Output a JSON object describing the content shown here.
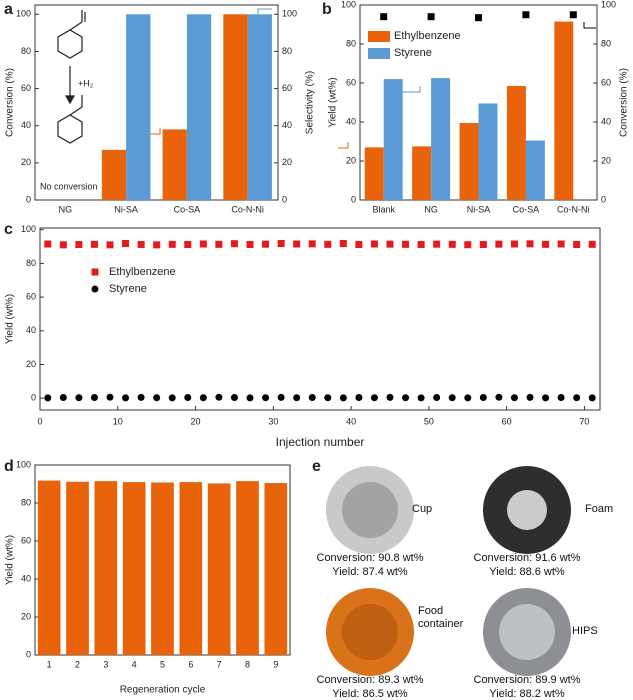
{
  "chart_data": [
    {
      "type": "bar",
      "panel_label": "a",
      "ylabel": "Conversion (%)",
      "ylabel_color": "#e8630a",
      "y2label": "Selectivity (%)",
      "y2label_color": "#5b9bd5",
      "categories": [
        "NG",
        "Ni-SA",
        "Co-SA",
        "Co-N-Ni"
      ],
      "series": [
        {
          "color": "#e8630a",
          "values": [
            0,
            27,
            38,
            100
          ]
        },
        {
          "color": "#5b9bd5",
          "axis": "y2",
          "values": [
            null,
            100,
            100,
            100
          ]
        }
      ],
      "ylim": [
        0,
        105
      ],
      "yticks": [
        0,
        20,
        40,
        60,
        80,
        100
      ],
      "y2lim": [
        0,
        105
      ],
      "y2ticks": [
        0,
        20,
        40,
        60,
        80,
        100
      ],
      "annotations": [
        "No conversion",
        "+H₂"
      ]
    },
    {
      "type": "bar",
      "panel_label": "b",
      "ylabel": "Yield (wt%)",
      "ylabel_color": "#e8630a",
      "y2label": "Conversion (%)",
      "y2label_color": "#000000",
      "categories": [
        "Blank",
        "NG",
        "Ni-SA",
        "Co-SA",
        "Co-N-Ni"
      ],
      "series": [
        {
          "name": "Ethylbenzene",
          "color": "#e8630a",
          "values": [
            27,
            27.5,
            39.5,
            58.5,
            91.5
          ]
        },
        {
          "name": "Styrene",
          "color": "#5b9bd5",
          "values": [
            62,
            62.5,
            49.5,
            30.5,
            null
          ]
        },
        {
          "type": "scatter",
          "marker": "square",
          "color": "#000000",
          "axis": "y2",
          "values": [
            94,
            94,
            93.5,
            95,
            95
          ]
        }
      ],
      "ylim": [
        0,
        100
      ],
      "yticks": [
        0,
        20,
        40,
        60,
        80,
        100
      ],
      "y2lim": [
        0,
        100
      ],
      "y2ticks": [
        0,
        20,
        40,
        60,
        80,
        100
      ],
      "legend": "upper left"
    },
    {
      "type": "scatter",
      "panel_label": "c",
      "ylabel": "Yield (wt%)",
      "xlabel": "Injection number",
      "x": [
        1,
        3,
        5,
        7,
        9,
        11,
        13,
        15,
        17,
        19,
        21,
        23,
        25,
        27,
        29,
        31,
        33,
        35,
        37,
        39,
        41,
        43,
        45,
        47,
        49,
        51,
        53,
        55,
        57,
        59,
        61,
        63,
        65,
        67,
        69,
        71
      ],
      "series": [
        {
          "name": "Ethylbenzene",
          "marker": "square",
          "color": "#e41a1c",
          "values": [
            91.5,
            91,
            91.2,
            91.3,
            91,
            91.8,
            91.2,
            91,
            91.3,
            91.2,
            91.5,
            91.3,
            91.7,
            91.2,
            91.4,
            91.8,
            91.5,
            91.6,
            91.3,
            91.8,
            91.2,
            91.5,
            91.4,
            91.3,
            91.2,
            91.4,
            91.3,
            91.1,
            91.2,
            91.4,
            91.5,
            91.6,
            91.3,
            91.5,
            91.2,
            91.3
          ]
        },
        {
          "name": "Styrene",
          "marker": "circle",
          "color": "#000000",
          "values": [
            0.2,
            0.4,
            0.3,
            0.4,
            0.6,
            0.2,
            0.5,
            0.3,
            0.2,
            0.4,
            0.3,
            0.6,
            0.4,
            0.2,
            0.3,
            0.5,
            0.3,
            0.4,
            0.3,
            0.2,
            0.4,
            0.3,
            0.5,
            0.3,
            0.2,
            0.4,
            0.3,
            0.2,
            0.4,
            0.6,
            0.3,
            0.5,
            0.2,
            0.4,
            0.3,
            0.2
          ]
        }
      ],
      "xlim": [
        0,
        72
      ],
      "xticks": [
        0,
        10,
        20,
        30,
        40,
        50,
        60,
        70
      ],
      "ylim": [
        -7,
        101
      ],
      "yticks": [
        0,
        20,
        40,
        60,
        80,
        100
      ],
      "legend": "upper left"
    },
    {
      "type": "bar",
      "panel_label": "d",
      "ylabel": "Yield (wt%)",
      "xlabel": "Regeneration cycle",
      "categories": [
        "1",
        "2",
        "3",
        "4",
        "5",
        "6",
        "7",
        "8",
        "9"
      ],
      "series": [
        {
          "color": "#e8630a",
          "values": [
            91.8,
            91.2,
            91.5,
            91,
            90.8,
            91,
            90.3,
            91.5,
            90.5
          ]
        }
      ],
      "ylim": [
        0,
        100
      ],
      "yticks": [
        0,
        20,
        40,
        60,
        80,
        100
      ]
    }
  ],
  "panel_e": {
    "panel_label": "e",
    "samples": [
      {
        "label": "Cup",
        "conversion": "Conversion: 90.8 wt%",
        "yield": "Yield: 87.4 wt%"
      },
      {
        "label": "Foam",
        "conversion": "Conversion: 91.6 wt%",
        "yield": "Yield: 88.6 wt%"
      },
      {
        "label": "Food container",
        "conversion": "Conversion: 89.3 wt%",
        "yield": "Yield: 86.5 wt%"
      },
      {
        "label": "HIPS",
        "conversion": "Conversion: 89.9 wt%",
        "yield": "Yield: 88.2 wt%"
      }
    ]
  }
}
